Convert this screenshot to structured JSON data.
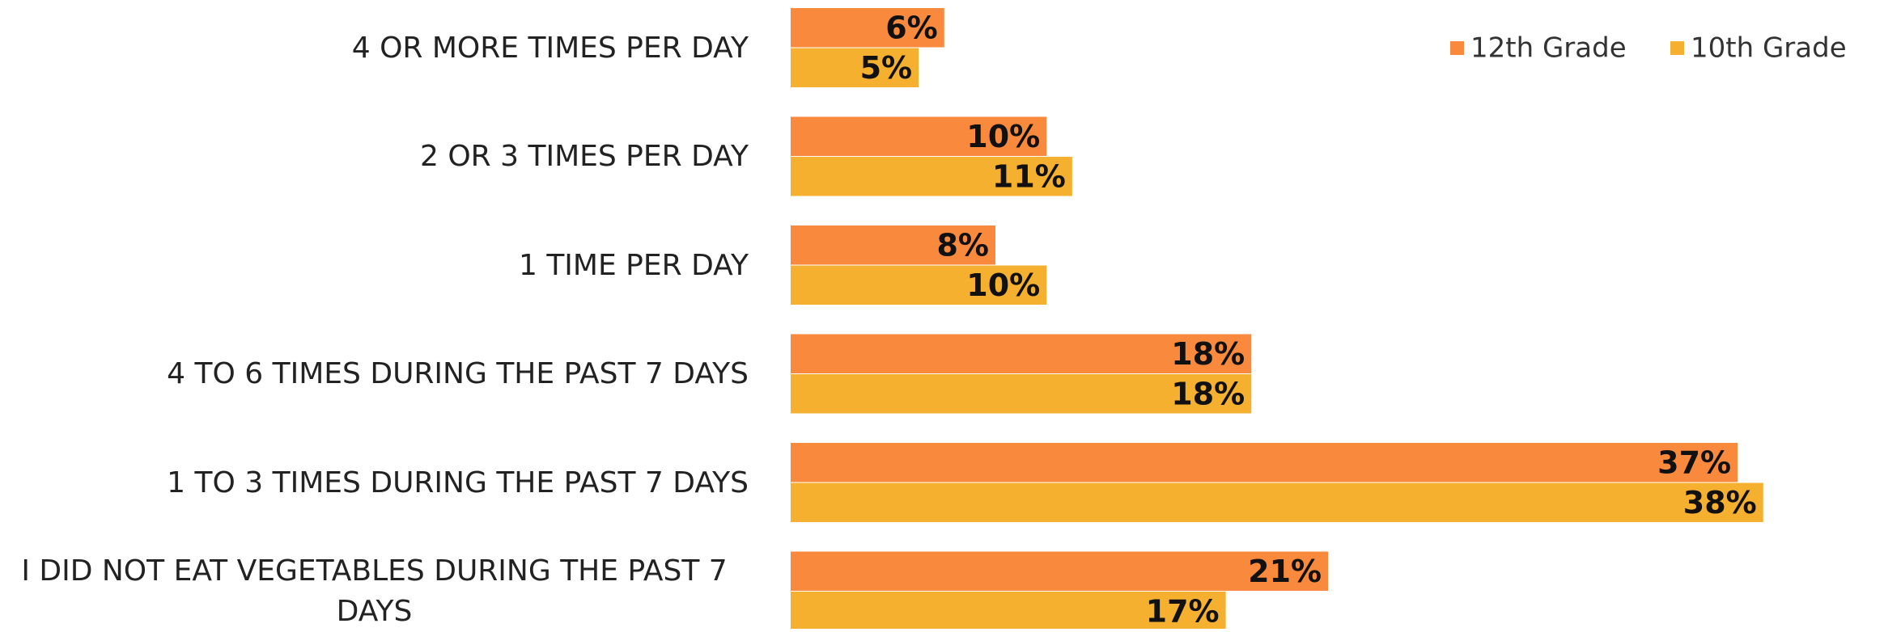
{
  "chart_data": {
    "type": "hbar",
    "categories": [
      "4 OR MORE TIMES PER DAY",
      "2 OR 3 TIMES PER DAY",
      "1 TIME PER DAY",
      "4 TO 6 TIMES DURING THE PAST 7 DAYS",
      "1 TO 3 TIMES DURING THE PAST 7 DAYS",
      "I DID NOT EAT VEGETABLES DURING THE PAST 7 DAYS"
    ],
    "series": [
      {
        "name": "12th Grade",
        "color": "#f98a3d",
        "values": [
          6,
          10,
          8,
          18,
          37,
          21
        ],
        "value_labels": [
          "6%",
          "10%",
          "8%",
          "18%",
          "37%",
          "21%"
        ]
      },
      {
        "name": "10th Grade",
        "color": "#f5b030",
        "values": [
          5,
          11,
          10,
          18,
          38,
          17
        ],
        "value_labels": [
          "5%",
          "11%",
          "10%",
          "18%",
          "38%",
          "17%"
        ]
      }
    ],
    "xlim": [
      0,
      40
    ],
    "legend": "top-right"
  }
}
